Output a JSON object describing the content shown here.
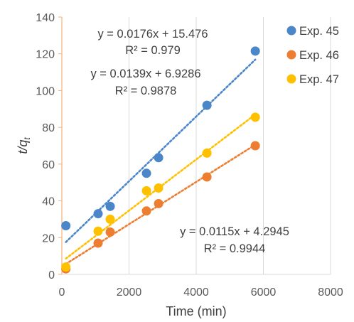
{
  "chart_data": {
    "type": "scatter",
    "xlabel": "Time (min)",
    "ylabel_main": "t/q",
    "ylabel_sub": "t",
    "xlim": [
      0,
      8000
    ],
    "ylim": [
      0,
      140
    ],
    "xticks": [
      0,
      2000,
      4000,
      6000,
      8000
    ],
    "yticks": [
      0,
      20,
      40,
      60,
      80,
      100,
      120,
      140
    ],
    "xtick_labels": [
      "0",
      "2000",
      "4000",
      "6000",
      "8000"
    ],
    "ytick_labels": [
      "0",
      "20",
      "40",
      "60",
      "80",
      "100",
      "120",
      "140"
    ],
    "grid": "vertical",
    "legend_position": "top-right",
    "series": [
      {
        "name": "Exp. 45",
        "color": "#4a86c8",
        "x": [
          120,
          1080,
          1440,
          2520,
          2880,
          4320,
          5760
        ],
        "y": [
          26.5,
          33,
          37,
          55,
          63.5,
          92,
          121.5
        ],
        "trend": {
          "slope": 0.0176,
          "intercept": 15.476
        },
        "equation": "y = 0.0176x + 15.476",
        "r2": "R² = 0.979"
      },
      {
        "name": "Exp. 46",
        "color": "#ed7d31",
        "x": [
          120,
          1080,
          1440,
          2520,
          2880,
          4320,
          5760
        ],
        "y": [
          3,
          17,
          23,
          34.5,
          38.5,
          53,
          70
        ],
        "trend": {
          "slope": 0.0115,
          "intercept": 4.2945
        },
        "equation": "y = 0.0115x + 4.2945",
        "r2": "R² = 0.9944"
      },
      {
        "name": "Exp. 47",
        "color": "#ffc000",
        "x": [
          120,
          1080,
          1440,
          2520,
          2880,
          4320,
          5760
        ],
        "y": [
          4,
          23.5,
          30,
          45.5,
          47,
          66,
          85.5
        ],
        "trend": {
          "slope": 0.0139,
          "intercept": 6.9286
        },
        "equation": "y = 0.0139x + 6.9286",
        "r2": "R² = 0.9878"
      }
    ]
  }
}
